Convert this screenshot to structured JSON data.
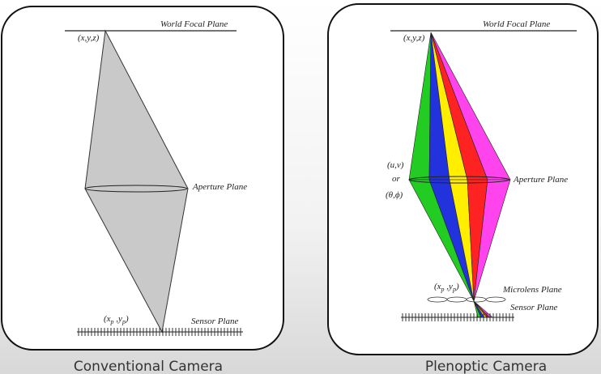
{
  "left_panel": {
    "world_plane": "World Focal Plane",
    "world_point": "(x,y,z)",
    "aperture_plane": "Aperture Plane",
    "sensor_point": [
      "(x",
      "p",
      " ,y",
      "p",
      ")"
    ],
    "sensor_plane": "Sensor Plane",
    "caption": "Conventional Camera"
  },
  "right_panel": {
    "world_plane": "World Focal Plane",
    "world_point": "(x,y,z)",
    "aperture_coords": "(u,v)",
    "or": "or",
    "angle_coords": "(θ,ϕ)",
    "aperture_plane": "Aperture Plane",
    "microlens_point": [
      "(x",
      "p",
      " ,y",
      "p",
      ")"
    ],
    "microlens_plane": "Microlens Plane",
    "sensor_plane": "Sensor Plane",
    "caption": "Plenoptic Camera"
  }
}
